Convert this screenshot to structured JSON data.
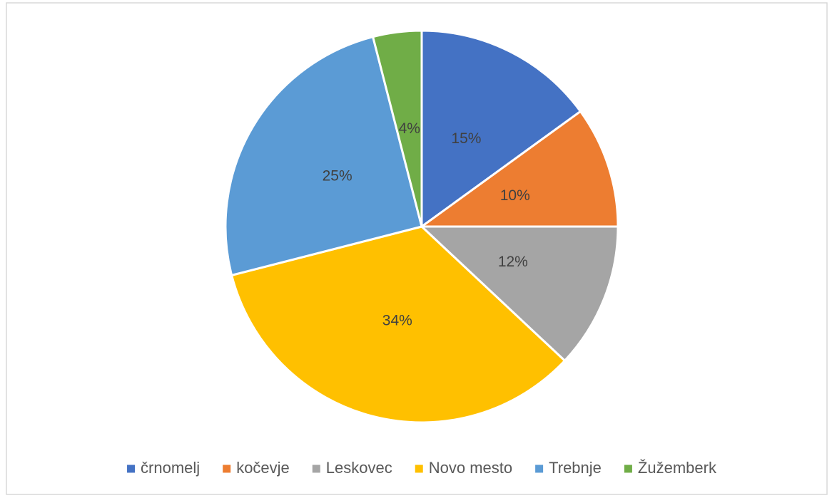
{
  "chart_data": {
    "type": "pie",
    "categories": [
      "črnomelj",
      "kočevje",
      "Leskovec",
      "Novo mesto",
      "Trebnje",
      "Žužemberk"
    ],
    "values": [
      15,
      10,
      12,
      34,
      25,
      4
    ],
    "value_labels": [
      "15%",
      "10%",
      "12%",
      "34%",
      "25%",
      "4%"
    ],
    "colors": [
      "#4472c4",
      "#ed7d31",
      "#a5a5a5",
      "#ffc000",
      "#5b9bd5",
      "#70ad47"
    ],
    "legend": "bottom"
  }
}
